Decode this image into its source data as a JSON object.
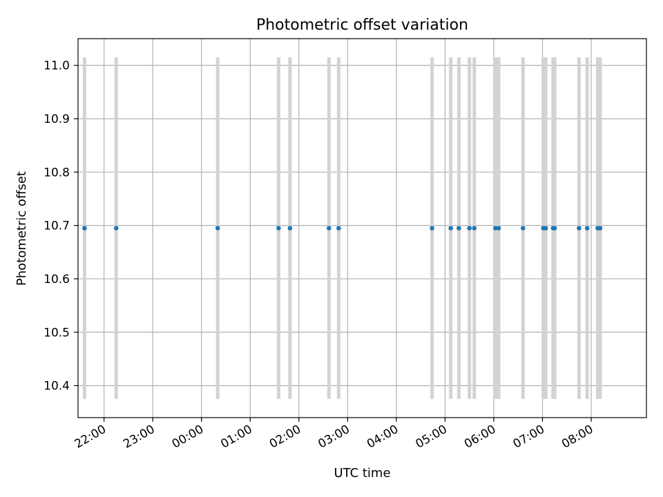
{
  "chart_data": {
    "type": "scatter",
    "title": "Photometric offset variation",
    "xlabel": "UTC time",
    "ylabel": "Photometric offset",
    "x_axis_type": "time",
    "xlim": [
      "21:28",
      "09:08"
    ],
    "ylim": [
      10.34,
      11.05
    ],
    "grid": true,
    "x_ticks": [
      "22:00",
      "23:00",
      "00:00",
      "01:00",
      "02:00",
      "03:00",
      "04:00",
      "05:00",
      "06:00",
      "07:00",
      "08:00"
    ],
    "y_ticks": [
      "10.4",
      "10.5",
      "10.6",
      "10.7",
      "10.8",
      "10.9",
      "11.0"
    ],
    "marker_color": "#1f77b4",
    "errorbar_color": "#d3d3d3",
    "points": [
      {
        "x": "21:36",
        "y": 10.695,
        "yerr_low": 10.375,
        "yerr_high": 11.015
      },
      {
        "x": "22:15",
        "y": 10.695,
        "yerr_low": 10.375,
        "yerr_high": 11.015
      },
      {
        "x": "00:20",
        "y": 10.695,
        "yerr_low": 10.375,
        "yerr_high": 11.015
      },
      {
        "x": "01:35",
        "y": 10.695,
        "yerr_low": 10.375,
        "yerr_high": 11.015
      },
      {
        "x": "01:49",
        "y": 10.695,
        "yerr_low": 10.375,
        "yerr_high": 11.015
      },
      {
        "x": "02:37",
        "y": 10.695,
        "yerr_low": 10.375,
        "yerr_high": 11.015
      },
      {
        "x": "02:49",
        "y": 10.695,
        "yerr_low": 10.375,
        "yerr_high": 11.015
      },
      {
        "x": "04:44",
        "y": 10.695,
        "yerr_low": 10.375,
        "yerr_high": 11.015
      },
      {
        "x": "05:07",
        "y": 10.695,
        "yerr_low": 10.375,
        "yerr_high": 11.015
      },
      {
        "x": "05:17",
        "y": 10.695,
        "yerr_low": 10.375,
        "yerr_high": 11.015
      },
      {
        "x": "05:30",
        "y": 10.695,
        "yerr_low": 10.375,
        "yerr_high": 11.015
      },
      {
        "x": "05:36",
        "y": 10.695,
        "yerr_low": 10.375,
        "yerr_high": 11.015
      },
      {
        "x": "06:02",
        "y": 10.695,
        "yerr_low": 10.375,
        "yerr_high": 11.015
      },
      {
        "x": "06:06",
        "y": 10.695,
        "yerr_low": 10.375,
        "yerr_high": 11.015
      },
      {
        "x": "06:36",
        "y": 10.695,
        "yerr_low": 10.375,
        "yerr_high": 11.015
      },
      {
        "x": "07:01",
        "y": 10.695,
        "yerr_low": 10.375,
        "yerr_high": 11.015
      },
      {
        "x": "07:04",
        "y": 10.695,
        "yerr_low": 10.375,
        "yerr_high": 11.015
      },
      {
        "x": "07:13",
        "y": 10.695,
        "yerr_low": 10.375,
        "yerr_high": 11.015
      },
      {
        "x": "07:15",
        "y": 10.695,
        "yerr_low": 10.375,
        "yerr_high": 11.015
      },
      {
        "x": "07:45",
        "y": 10.695,
        "yerr_low": 10.375,
        "yerr_high": 11.015
      },
      {
        "x": "07:55",
        "y": 10.695,
        "yerr_low": 10.375,
        "yerr_high": 11.015
      },
      {
        "x": "08:08",
        "y": 10.695,
        "yerr_low": 10.375,
        "yerr_high": 11.015
      },
      {
        "x": "08:11",
        "y": 10.695,
        "yerr_low": 10.375,
        "yerr_high": 11.015
      }
    ]
  }
}
